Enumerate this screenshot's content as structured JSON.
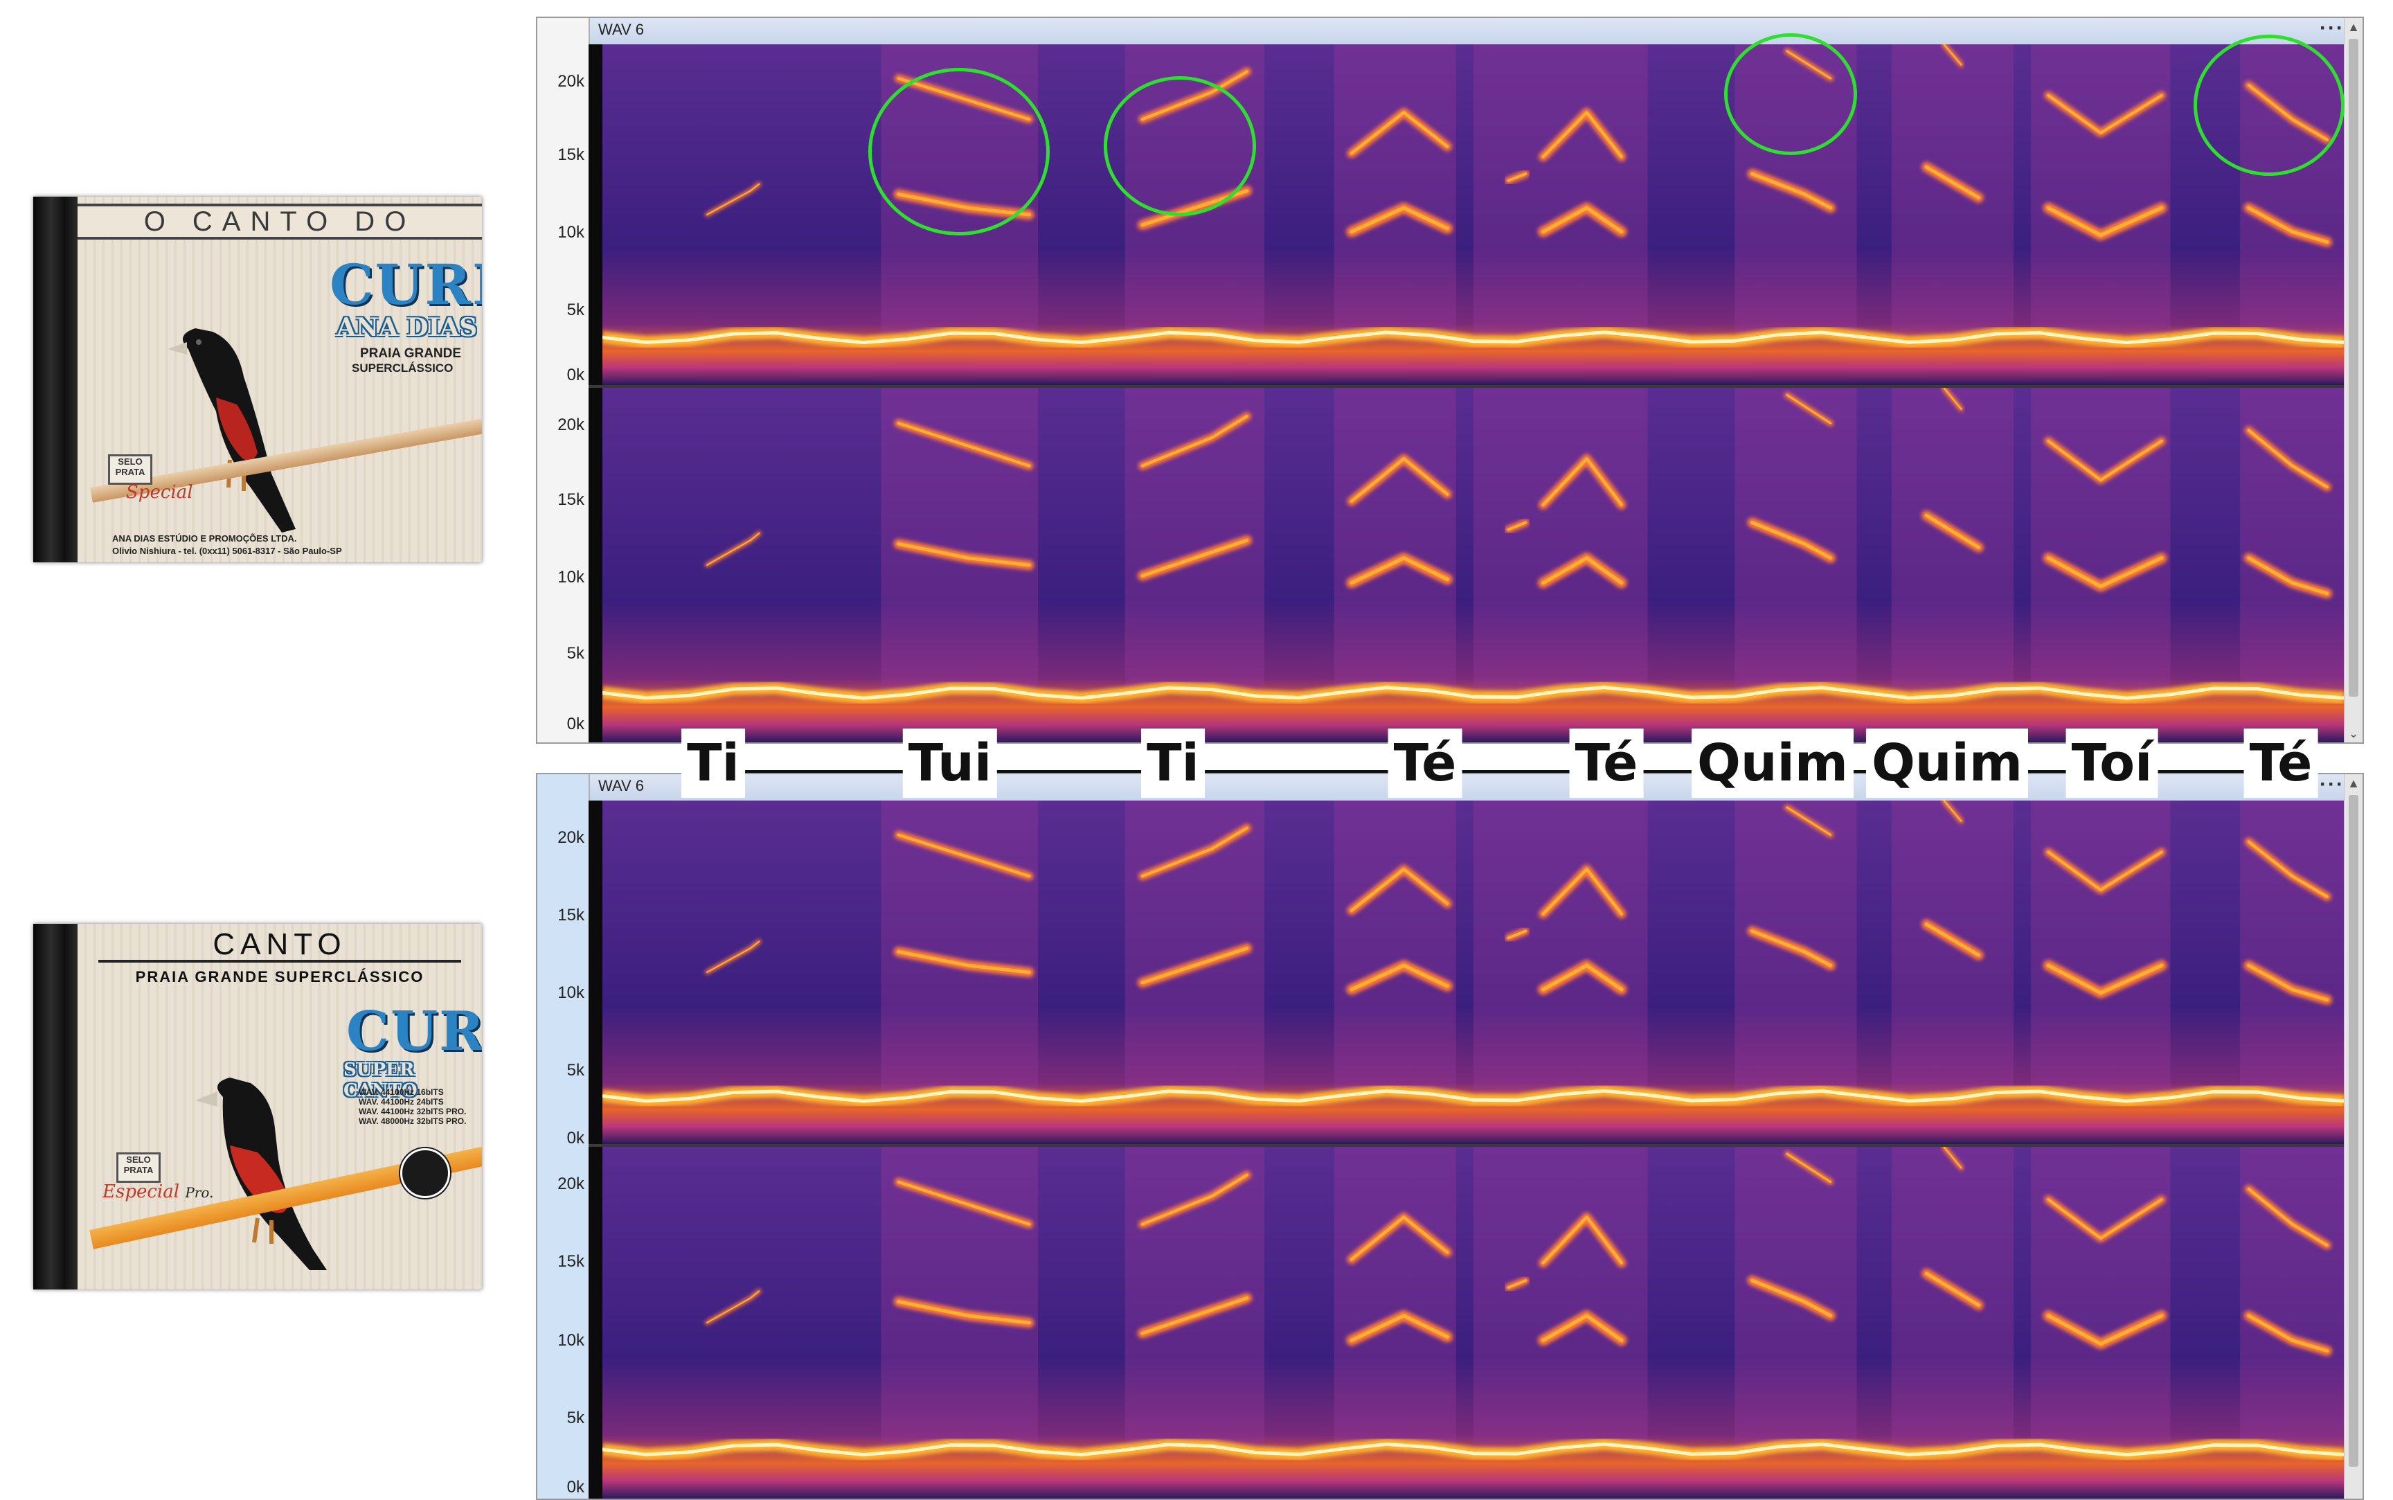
{
  "cd_covers": [
    {
      "header": "O CANTO DO",
      "brand": "CURIÓ",
      "subtitle": "ANA DIAS",
      "line1": "PRAIA GRANDE",
      "line2": "SUPERCLÁSSICO",
      "seal_top": "SELO",
      "seal_bottom": "PRATA",
      "seal_script": "Special",
      "footer1": "ANA DIAS ESTÚDIO E PROMOÇÕES LTDA.",
      "footer2": "Olivio Nishiura - tel. (0xx11) 5061-8317 - São Paulo-SP"
    },
    {
      "header": "CANTO",
      "tagline": "PRAIA  GRANDE SUPERCLÁSSICO",
      "brand": "CURIÓ",
      "subtitle": "SUPER CANTO",
      "formats": [
        "WAV. 44100Hz 16bITS",
        "WAV. 44100Hz 24bITS",
        "WAV. 44100Hz 32bITS PRO.",
        "WAV. 48000Hz 32bITS PRO."
      ],
      "seal_top": "SELO",
      "seal_bottom": "PRATA",
      "seal_script": "Especial",
      "seal_suffix": "Pro."
    }
  ],
  "spectrogram_windows": [
    {
      "track_name": "WAV 6",
      "menu_icon": "more-options-icon"
    },
    {
      "track_name": "WAV 6",
      "menu_icon": "more-options-icon"
    }
  ],
  "freq_ticks": [
    "20k",
    "15k",
    "10k",
    "5k",
    "0k"
  ],
  "syllables": [
    "Ti",
    "Tui",
    "Ti",
    "Té",
    "Té",
    "Quim",
    "Quim",
    "Toí",
    "Té"
  ],
  "colors": {
    "spectro_bg": "#3b1f7e",
    "spectro_hot": "#ffb02e",
    "spectro_peak": "#fff5c0",
    "marker": "#2ee02e",
    "brand_blue": "#2c83c4"
  }
}
